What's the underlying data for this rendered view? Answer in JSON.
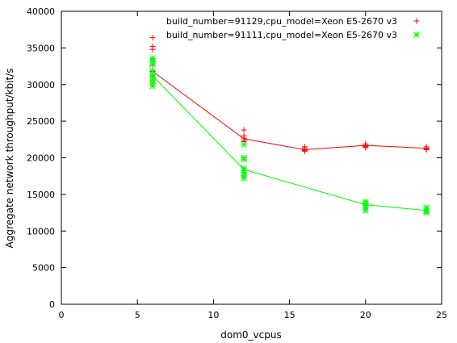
{
  "chart_data": {
    "type": "scatter",
    "title": "",
    "xlabel": "dom0_vcpus",
    "ylabel": "Aggregate network throughput/kbit/s",
    "xlim": [
      0,
      25
    ],
    "ylim": [
      0,
      40000
    ],
    "xticks": [
      0,
      5,
      10,
      15,
      20,
      25
    ],
    "yticks": [
      0,
      5000,
      10000,
      15000,
      20000,
      25000,
      30000,
      35000,
      40000
    ],
    "grid": false,
    "legend_position": "top-right",
    "series": [
      {
        "name": "build_number=91129,cpu_model=Xeon E5-2670 v3",
        "color": "#ff0000",
        "marker": "plus",
        "points": [
          [
            6,
            36400
          ],
          [
            6,
            35200
          ],
          [
            6,
            34800
          ],
          [
            6,
            33500
          ],
          [
            6,
            32600
          ],
          [
            6,
            31800
          ],
          [
            6,
            31200
          ],
          [
            6,
            30600
          ],
          [
            6,
            30200
          ],
          [
            12,
            23800
          ],
          [
            12,
            23000
          ],
          [
            12,
            22700
          ],
          [
            12,
            22400
          ],
          [
            12,
            22200
          ],
          [
            16,
            21500
          ],
          [
            16,
            21300
          ],
          [
            16,
            21100
          ],
          [
            16,
            21000
          ],
          [
            16,
            20900
          ],
          [
            20,
            21900
          ],
          [
            20,
            21700
          ],
          [
            20,
            21600
          ],
          [
            20,
            21500
          ],
          [
            20,
            21400
          ],
          [
            24,
            21500
          ],
          [
            24,
            21300
          ],
          [
            24,
            21200
          ],
          [
            24,
            21100
          ]
        ],
        "mean_line": {
          "x": [
            6,
            12,
            16,
            20,
            24
          ],
          "y": [
            31800,
            22600,
            21100,
            21700,
            21300
          ]
        }
      },
      {
        "name": "build_number=91111,cpu_model=Xeon E5-2670 v3",
        "color": "#00ff00",
        "marker": "star",
        "points": [
          [
            6,
            33600
          ],
          [
            6,
            33200
          ],
          [
            6,
            32800
          ],
          [
            6,
            31900
          ],
          [
            6,
            31400
          ],
          [
            6,
            31000
          ],
          [
            6,
            30600
          ],
          [
            6,
            30200
          ],
          [
            6,
            29800
          ],
          [
            12,
            20000
          ],
          [
            12,
            19800
          ],
          [
            12,
            18600
          ],
          [
            12,
            18300
          ],
          [
            12,
            18000
          ],
          [
            12,
            17600
          ],
          [
            12,
            17200
          ],
          [
            12,
            21800
          ],
          [
            20,
            14000
          ],
          [
            20,
            13800
          ],
          [
            20,
            13500
          ],
          [
            20,
            13200
          ],
          [
            20,
            12800
          ],
          [
            24,
            13200
          ],
          [
            24,
            12900
          ],
          [
            24,
            12700
          ],
          [
            24,
            12500
          ]
        ],
        "mean_line": {
          "x": [
            6,
            12,
            20,
            24
          ],
          "y": [
            31200,
            18400,
            13600,
            12800
          ]
        }
      }
    ]
  }
}
